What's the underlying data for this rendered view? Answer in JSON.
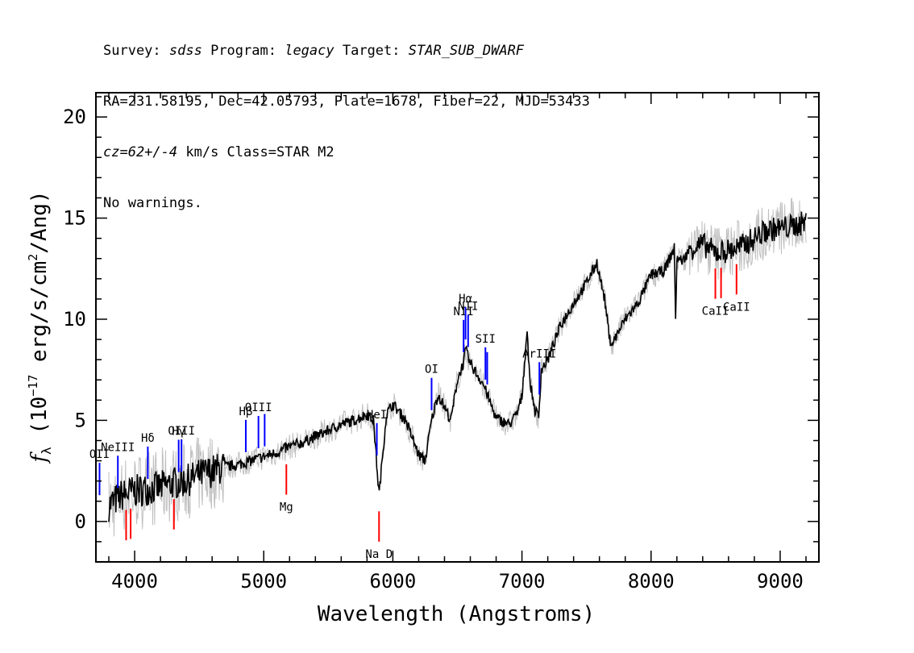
{
  "header": {
    "line1": {
      "survey_label": "Survey: ",
      "survey": "sdss",
      "program_label": " Program: ",
      "program": "legacy",
      "target_label": " Target: ",
      "target": "STAR_SUB_DWARF"
    },
    "line2": "RA=231.58195, Dec=42.05793, Plate=1678, Fiber=22, MJD=53433",
    "line3": {
      "cz": "cz=62+/-4",
      "rest": " km/s Class=STAR M2"
    },
    "line4": "No warnings."
  },
  "chart_data": {
    "type": "line",
    "xlabel": "Wavelength (Angstroms)",
    "ylabel": "f_λ (10^-17 erg/s/cm^2/Ang)",
    "ylabel_parts": {
      "f": "f",
      "lambda": "λ",
      "open": " (10",
      "exp": "−17",
      "mid": " erg/s/cm",
      "exp2": "2",
      "close": "/Ang)"
    },
    "xlim": [
      3700,
      9300
    ],
    "ylim": [
      -2,
      21.2
    ],
    "xticks": [
      4000,
      5000,
      6000,
      7000,
      8000,
      9000
    ],
    "yticks": [
      0,
      5,
      10,
      15,
      20
    ],
    "colors": {
      "flux": "#000000",
      "error": "#c0c0c0",
      "emission": "#0000ff",
      "absorption": "#ff0000"
    },
    "series": [
      {
        "name": "flux",
        "x": [
          3800,
          3900,
          4000,
          4100,
          4200,
          4300,
          4400,
          4500,
          4600,
          4700,
          4800,
          4900,
          5000,
          5100,
          5200,
          5300,
          5400,
          5500,
          5600,
          5700,
          5800,
          5850,
          5893,
          5950,
          6000,
          6100,
          6200,
          6250,
          6300,
          6350,
          6450,
          6500,
          6550,
          6563,
          6600,
          6700,
          6800,
          6900,
          6960,
          7000,
          7040,
          7060,
          7100,
          7130,
          7150,
          7200,
          7300,
          7400,
          7500,
          7580,
          7640,
          7680,
          7700,
          7800,
          7900,
          8000,
          8100,
          8180,
          8190,
          8200,
          8250,
          8300,
          8400,
          8500,
          8600,
          8700,
          8800,
          8900,
          9000,
          9100,
          9200
        ],
        "y": [
          0.8,
          1.3,
          1.5,
          1.6,
          1.7,
          1.9,
          2.0,
          2.3,
          2.5,
          2.7,
          2.8,
          3.0,
          3.2,
          3.4,
          3.7,
          3.9,
          4.2,
          4.5,
          4.8,
          5.0,
          5.3,
          5.0,
          1.3,
          5.3,
          5.8,
          5.0,
          3.3,
          3.0,
          5.0,
          6.3,
          5.0,
          7.0,
          7.9,
          8.5,
          7.8,
          6.8,
          5.1,
          4.8,
          5.3,
          6.2,
          9.5,
          7.0,
          5.5,
          5.2,
          7.5,
          8.0,
          9.7,
          10.8,
          11.8,
          12.8,
          11.0,
          9.0,
          8.8,
          10.0,
          10.8,
          12.2,
          12.4,
          13.5,
          10.0,
          13.0,
          12.9,
          13.5,
          13.7,
          13.3,
          13.4,
          13.6,
          14.0,
          14.4,
          14.5,
          14.6,
          14.8
        ]
      }
    ],
    "lines": [
      {
        "label": "OII",
        "wave": 3728,
        "kind": "emission"
      },
      {
        "label": "NeIII",
        "wave": 3870,
        "kind": "emission"
      },
      {
        "label": "Hδ",
        "wave": 4102,
        "kind": "emission"
      },
      {
        "label": "Hγ",
        "wave": 4341,
        "kind": "emission"
      },
      {
        "label": "OIII",
        "wave": 4363,
        "kind": "emission"
      },
      {
        "label": "Hβ",
        "wave": 4861,
        "kind": "emission"
      },
      {
        "label": "OIII",
        "wave": 4959,
        "kind": "emission"
      },
      {
        "label": "OIII",
        "wave": 5007,
        "kind": "emission"
      },
      {
        "label": "HeI",
        "wave": 5876,
        "kind": "emission"
      },
      {
        "label": "OI",
        "wave": 6300,
        "kind": "emission"
      },
      {
        "label": "NII",
        "wave": 6548,
        "kind": "emission"
      },
      {
        "label": "Hα",
        "wave": 6563,
        "kind": "emission"
      },
      {
        "label": "NII",
        "wave": 6583,
        "kind": "emission"
      },
      {
        "label": "SII",
        "wave": 6717,
        "kind": "emission"
      },
      {
        "label": "SII",
        "wave": 6731,
        "kind": "emission"
      },
      {
        "label": "ArIII",
        "wave": 7135,
        "kind": "emission"
      },
      {
        "label": "",
        "wave": 3934,
        "kind": "absorption"
      },
      {
        "label": "",
        "wave": 3969,
        "kind": "absorption"
      },
      {
        "label": "",
        "wave": 4304,
        "kind": "absorption"
      },
      {
        "label": "Mg",
        "wave": 5175,
        "kind": "absorption"
      },
      {
        "label": "Na D",
        "wave": 5893,
        "kind": "absorption"
      },
      {
        "label": "CaII",
        "wave": 8498,
        "kind": "absorption"
      },
      {
        "label": "CaII",
        "wave": 8542,
        "kind": "absorption"
      },
      {
        "label": "CaII",
        "wave": 8662,
        "kind": "absorption"
      }
    ],
    "grid": false,
    "legend": "none"
  }
}
